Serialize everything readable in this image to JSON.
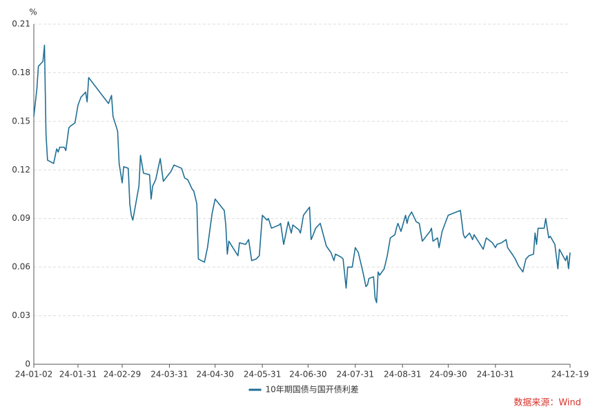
{
  "chart_data": {
    "type": "line",
    "y_unit": "%",
    "x": [
      "24-01-02",
      "24-01-04",
      "24-01-05",
      "24-01-08",
      "24-01-09",
      "24-01-10",
      "24-01-11",
      "24-01-15",
      "24-01-17",
      "24-01-18",
      "24-01-19",
      "24-01-22",
      "24-01-23",
      "24-01-25",
      "24-01-26",
      "24-01-29",
      "24-01-31",
      "24-02-02",
      "24-02-05",
      "24-02-06",
      "24-02-07",
      "24-02-20",
      "24-02-22",
      "24-02-23",
      "24-02-26",
      "24-02-27",
      "24-02-29",
      "24-03-01",
      "24-03-04",
      "24-03-05",
      "24-03-06",
      "24-03-07",
      "24-03-11",
      "24-03-12",
      "24-03-14",
      "24-03-18",
      "24-03-19",
      "24-03-20",
      "24-03-22",
      "24-03-25",
      "24-03-27",
      "24-04-01",
      "24-04-03",
      "24-04-08",
      "24-04-10",
      "24-04-12",
      "24-04-15",
      "24-04-16",
      "24-04-18",
      "24-04-19",
      "24-04-23",
      "24-04-25",
      "24-04-28",
      "24-04-30",
      "24-05-06",
      "24-05-07",
      "24-05-08",
      "24-05-09",
      "24-05-13",
      "24-05-15",
      "24-05-16",
      "24-05-20",
      "24-05-22",
      "24-05-24",
      "24-05-27",
      "24-05-29",
      "24-05-31",
      "24-06-03",
      "24-06-04",
      "24-06-06",
      "24-06-11",
      "24-06-12",
      "24-06-14",
      "24-06-17",
      "24-06-19",
      "24-06-20",
      "24-06-24",
      "24-06-25",
      "24-06-27",
      "24-07-01",
      "24-07-02",
      "24-07-03",
      "24-07-05",
      "24-07-08",
      "24-07-10",
      "24-07-12",
      "24-07-15",
      "24-07-17",
      "24-07-18",
      "24-07-22",
      "24-07-23",
      "24-07-25",
      "24-07-26",
      "24-07-29",
      "24-07-31",
      "24-08-02",
      "24-08-05",
      "24-08-07",
      "24-08-08",
      "24-08-09",
      "24-08-12",
      "24-08-13",
      "24-08-14",
      "24-08-15",
      "24-08-16",
      "24-08-19",
      "24-08-21",
      "24-08-23",
      "24-08-26",
      "24-08-27",
      "24-08-28",
      "24-08-30",
      "24-09-02",
      "24-09-03",
      "24-09-04",
      "24-09-06",
      "24-09-09",
      "24-09-11",
      "24-09-13",
      "24-09-18",
      "24-09-19",
      "24-09-20",
      "24-09-23",
      "24-09-24",
      "24-09-26",
      "24-09-30",
      "24-10-08",
      "24-10-10",
      "24-10-11",
      "24-10-14",
      "24-10-16",
      "24-10-17",
      "24-10-21",
      "24-10-23",
      "24-10-25",
      "24-10-29",
      "24-10-31",
      "24-11-01",
      "24-11-04",
      "24-11-07",
      "24-11-08",
      "24-11-11",
      "24-11-13",
      "24-11-15",
      "24-11-18",
      "24-11-20",
      "24-11-22",
      "24-11-25",
      "24-11-26",
      "24-11-27",
      "24-11-28",
      "24-12-02",
      "24-12-03",
      "24-12-05",
      "24-12-06",
      "24-12-09",
      "24-12-11",
      "24-12-12",
      "24-12-16",
      "24-12-17",
      "24-12-18",
      "24-12-19"
    ],
    "series": [
      {
        "name": "10年期国债与国开债利差",
        "color": "#1f6e94",
        "values": [
          0.153,
          0.17,
          0.184,
          0.187,
          0.197,
          0.142,
          0.126,
          0.124,
          0.133,
          0.131,
          0.134,
          0.134,
          0.132,
          0.146,
          0.147,
          0.149,
          0.16,
          0.165,
          0.168,
          0.162,
          0.177,
          0.161,
          0.166,
          0.153,
          0.144,
          0.124,
          0.112,
          0.122,
          0.121,
          0.099,
          0.092,
          0.089,
          0.11,
          0.129,
          0.118,
          0.117,
          0.102,
          0.11,
          0.114,
          0.127,
          0.113,
          0.119,
          0.123,
          0.121,
          0.115,
          0.114,
          0.108,
          0.107,
          0.099,
          0.065,
          0.063,
          0.072,
          0.093,
          0.102,
          0.095,
          0.086,
          0.068,
          0.076,
          0.07,
          0.067,
          0.075,
          0.074,
          0.077,
          0.064,
          0.065,
          0.067,
          0.092,
          0.089,
          0.09,
          0.084,
          0.086,
          0.087,
          0.074,
          0.088,
          0.081,
          0.086,
          0.083,
          0.081,
          0.092,
          0.097,
          0.077,
          0.079,
          0.084,
          0.087,
          0.08,
          0.073,
          0.069,
          0.064,
          0.068,
          0.066,
          0.065,
          0.047,
          0.06,
          0.06,
          0.072,
          0.069,
          0.057,
          0.048,
          0.049,
          0.053,
          0.054,
          0.041,
          0.038,
          0.057,
          0.055,
          0.059,
          0.067,
          0.078,
          0.08,
          0.084,
          0.087,
          0.082,
          0.092,
          0.087,
          0.091,
          0.094,
          0.088,
          0.087,
          0.076,
          0.082,
          0.084,
          0.076,
          0.078,
          0.072,
          0.082,
          0.092,
          0.095,
          0.08,
          0.078,
          0.081,
          0.077,
          0.08,
          0.074,
          0.071,
          0.078,
          0.075,
          0.072,
          0.074,
          0.075,
          0.077,
          0.072,
          0.068,
          0.065,
          0.061,
          0.057,
          0.065,
          0.067,
          0.068,
          0.081,
          0.074,
          0.084,
          0.084,
          0.09,
          0.078,
          0.079,
          0.074,
          0.059,
          0.071,
          0.064,
          0.067,
          0.059,
          0.069
        ]
      }
    ],
    "xlim": [
      "24-01-02",
      "24-12-19"
    ],
    "xticks": [
      "24-01-02",
      "24-01-31",
      "24-02-29",
      "24-03-31",
      "24-04-30",
      "24-05-31",
      "24-06-30",
      "24-07-31",
      "24-08-31",
      "24-09-30",
      "24-10-31",
      "24-12-19"
    ],
    "ylim": [
      0,
      0.21
    ],
    "yticks": [
      0,
      0.03,
      0.06,
      0.09,
      0.12,
      0.15,
      0.18,
      0.21
    ],
    "grid": true,
    "legend": "bottom",
    "source": "数据来源：Wind"
  }
}
